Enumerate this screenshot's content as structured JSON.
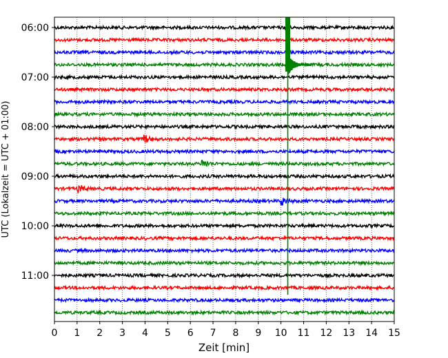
{
  "chart_data": {
    "type": "line",
    "title": "",
    "xlabel": "Zeit  [min]",
    "ylabel": "UTC (Lokalzeit = UTC + 01:00)",
    "xlim": [
      0,
      15
    ],
    "x_ticks": [
      "0",
      "1",
      "2",
      "3",
      "4",
      "5",
      "6",
      "7",
      "8",
      "9",
      "10",
      "11",
      "12",
      "13",
      "14",
      "15"
    ],
    "y_ticks": [
      "06:00",
      "07:00",
      "08:00",
      "09:00",
      "10:00",
      "11:00"
    ],
    "y_range_minutes_utc": [
      360,
      720
    ],
    "trace_interval_minutes": 15,
    "grid": {
      "vertical": true,
      "style": "dotted"
    },
    "trace_colors": [
      "#000000",
      "#ff0000",
      "#0000ff",
      "#008000"
    ],
    "traces": [
      {
        "start": "06:00",
        "color": "#000000"
      },
      {
        "start": "06:15",
        "color": "#ff0000"
      },
      {
        "start": "06:30",
        "color": "#0000ff"
      },
      {
        "start": "06:45",
        "color": "#008000"
      },
      {
        "start": "07:00",
        "color": "#000000"
      },
      {
        "start": "07:15",
        "color": "#ff0000"
      },
      {
        "start": "07:30",
        "color": "#0000ff"
      },
      {
        "start": "07:45",
        "color": "#008000"
      },
      {
        "start": "08:00",
        "color": "#000000"
      },
      {
        "start": "08:15",
        "color": "#ff0000"
      },
      {
        "start": "08:30",
        "color": "#0000ff"
      },
      {
        "start": "08:45",
        "color": "#008000"
      },
      {
        "start": "09:00",
        "color": "#000000"
      },
      {
        "start": "09:15",
        "color": "#ff0000"
      },
      {
        "start": "09:30",
        "color": "#0000ff"
      },
      {
        "start": "09:45",
        "color": "#008000"
      },
      {
        "start": "10:00",
        "color": "#000000"
      },
      {
        "start": "10:15",
        "color": "#ff0000"
      },
      {
        "start": "10:30",
        "color": "#0000ff"
      },
      {
        "start": "10:45",
        "color": "#008000"
      },
      {
        "start": "11:00",
        "color": "#000000"
      },
      {
        "start": "11:15",
        "color": "#ff0000"
      },
      {
        "start": "11:30",
        "color": "#0000ff"
      },
      {
        "start": "11:45",
        "color": "#008000"
      }
    ],
    "events": [
      {
        "trace": "06:45",
        "time_min": 10.3,
        "description": "large green transient spanning many traces",
        "strength": "large"
      },
      {
        "trace": "09:15",
        "time_min": 1.1,
        "strength": "small"
      },
      {
        "trace": "09:30",
        "time_min": 10.1,
        "strength": "small"
      },
      {
        "trace": "08:45",
        "time_min": 6.6,
        "strength": "small"
      },
      {
        "trace": "08:15",
        "time_min": 4.0,
        "strength": "small"
      }
    ]
  }
}
